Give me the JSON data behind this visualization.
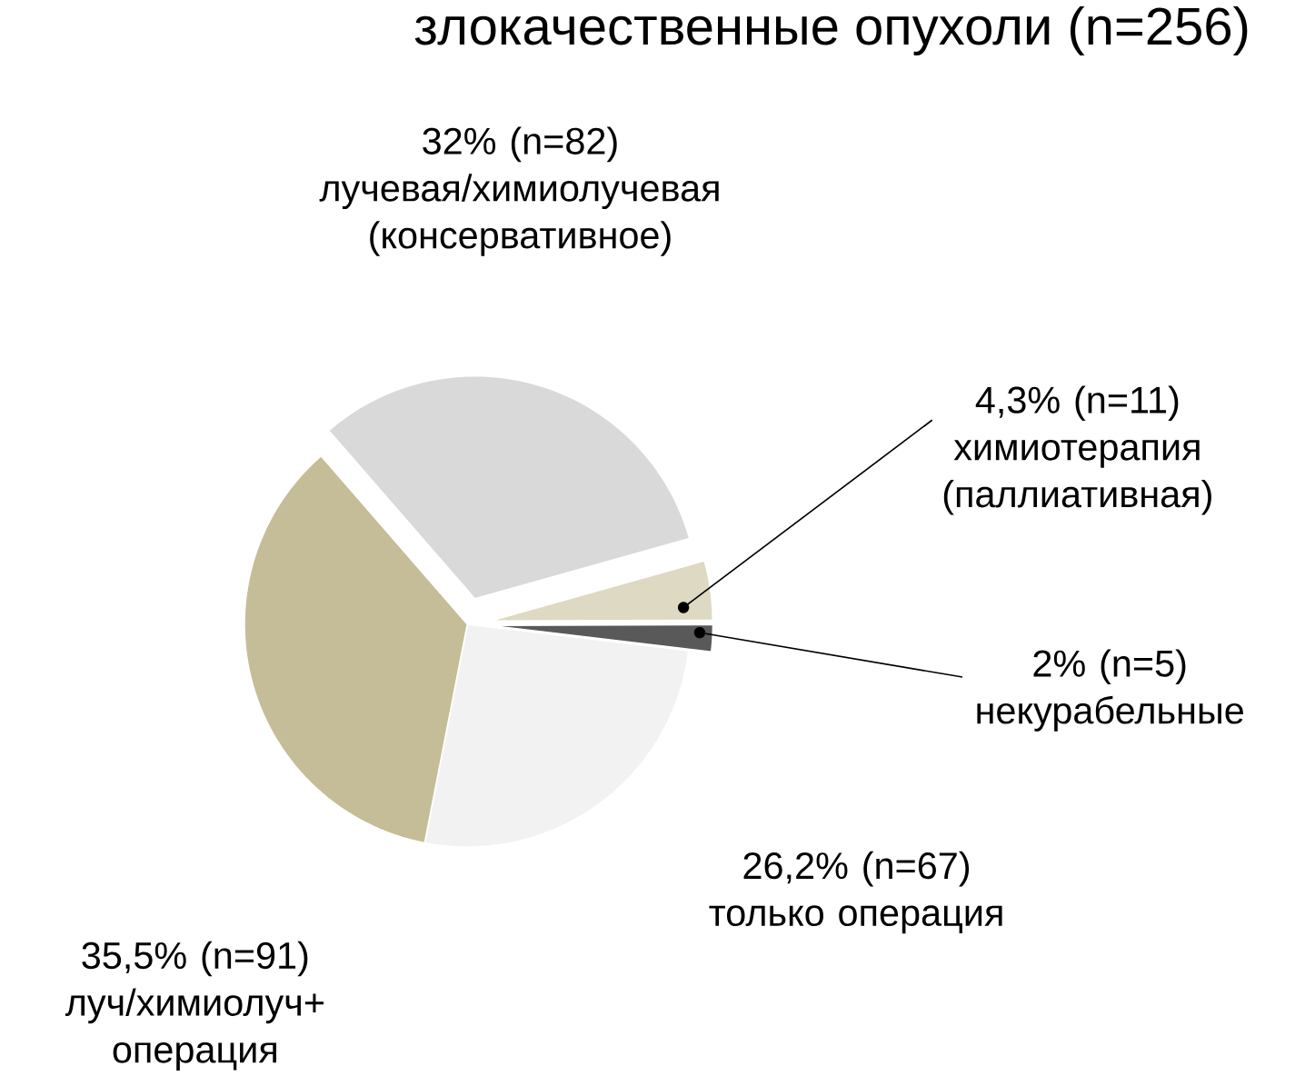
{
  "chart_data": {
    "type": "pie",
    "title": "злокачественные опухоли (n=256)",
    "categories": [
      "лучевая/химиолучевая (консервативное)",
      "химиотерапия (паллиативная)",
      "некурабельные",
      "только операция",
      "луч/химиолуч+ операция"
    ],
    "values": [
      82,
      11,
      5,
      67,
      91
    ],
    "value_labels": [
      "32% (n=82)",
      "4,3% (n=11)",
      "2% (n=5)",
      "26,2% (n=67)",
      "35,5% (n=91)"
    ],
    "colors": [
      "#d9d9d9",
      "#ddd9c3",
      "#595959",
      "#f2f2f2",
      "#c4bd97"
    ]
  }
}
